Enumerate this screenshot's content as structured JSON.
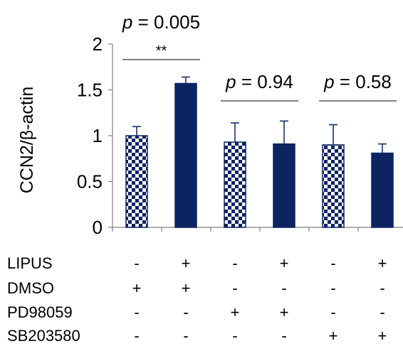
{
  "chart_data": {
    "type": "bar",
    "ylabel": "CCN2/β-actin",
    "ylim": [
      0,
      2
    ],
    "yticks": [
      "0",
      "0.5",
      "1",
      "1.5",
      "2"
    ],
    "grid": false,
    "values": [
      1.0,
      1.57,
      0.93,
      0.91,
      0.9,
      0.81
    ],
    "error": [
      0.1,
      0.07,
      0.21,
      0.25,
      0.22,
      0.1
    ],
    "styles": [
      "checkered",
      "solid",
      "checkered",
      "solid",
      "checkered",
      "solid"
    ],
    "colors": {
      "solid": "#0d2462",
      "checker": "#0d2462",
      "axis": "#7f7f7f"
    },
    "annotations": [
      {
        "label": "p = 0.005",
        "stars": "**",
        "from": 0,
        "to": 1,
        "y": 1.83
      },
      {
        "label": "p = 0.94",
        "stars": "",
        "from": 2,
        "to": 3,
        "y": 1.38
      },
      {
        "label": "p = 0.58",
        "stars": "",
        "from": 4,
        "to": 5,
        "y": 1.38
      }
    ],
    "conditions": [
      {
        "label": "LIPUS",
        "signs": [
          "-",
          "+",
          "-",
          "+",
          "-",
          "+"
        ]
      },
      {
        "label": "DMSO",
        "signs": [
          "+",
          "+",
          "-",
          "-",
          "-",
          "-"
        ]
      },
      {
        "label": "PD98059",
        "signs": [
          "-",
          "-",
          "+",
          "+",
          "-",
          "-"
        ]
      },
      {
        "label": "SB203580",
        "signs": [
          "-",
          "-",
          "-",
          "-",
          "+",
          "+"
        ]
      }
    ]
  }
}
